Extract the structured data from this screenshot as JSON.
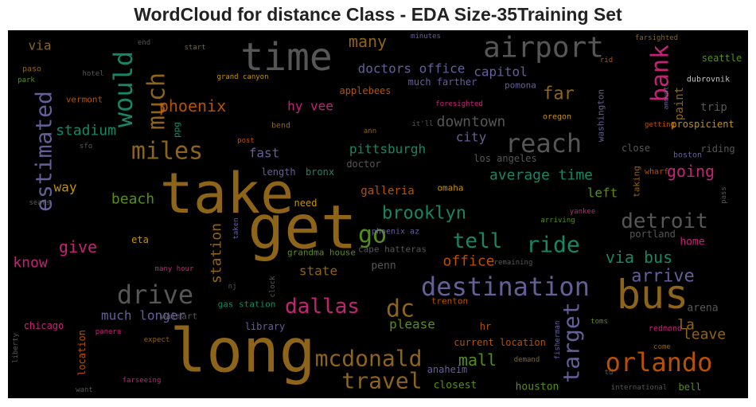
{
  "chart_data": {
    "type": "wordcloud",
    "title": "WordCloud for distance Class - EDA Size-35Training Set",
    "words": [
      {
        "text": "take",
        "color": "#a6761d"
      },
      {
        "text": "get",
        "color": "#a6761d"
      },
      {
        "text": "long",
        "color": "#a6761d"
      },
      {
        "text": "time",
        "color": "#666666"
      },
      {
        "text": "airport",
        "color": "#666666"
      },
      {
        "text": "bus",
        "color": "#a6761d"
      },
      {
        "text": "destination",
        "color": "#7570b3"
      },
      {
        "text": "orlando",
        "color": "#d95f02"
      },
      {
        "text": "reach",
        "color": "#666666"
      },
      {
        "text": "drive",
        "color": "#666666"
      },
      {
        "text": "miles",
        "color": "#a6761d"
      },
      {
        "text": "mcdonald",
        "color": "#a6761d"
      },
      {
        "text": "travel",
        "color": "#a6761d"
      },
      {
        "text": "dallas",
        "color": "#e7298a"
      },
      {
        "text": "dc",
        "color": "#a6761d"
      },
      {
        "text": "detroit",
        "color": "#666666"
      },
      {
        "text": "ride",
        "color": "#1b9e77"
      },
      {
        "text": "tell",
        "color": "#1b9e77"
      },
      {
        "text": "go",
        "color": "#66a61e"
      },
      {
        "text": "brooklyn",
        "color": "#1b9e77"
      },
      {
        "text": "would",
        "color": "#1b9e77"
      },
      {
        "text": "much",
        "color": "#a6761d"
      },
      {
        "text": "estimated",
        "color": "#7570b3"
      },
      {
        "text": "bank",
        "color": "#e7298a"
      },
      {
        "text": "target",
        "color": "#7570b3"
      },
      {
        "text": "via bus",
        "color": "#1b9e77"
      },
      {
        "text": "arrive",
        "color": "#7570b3"
      },
      {
        "text": "going",
        "color": "#e7298a"
      },
      {
        "text": "phoenix",
        "color": "#d95f02"
      },
      {
        "text": "far",
        "color": "#a6761d"
      },
      {
        "text": "many",
        "color": "#a6761d"
      },
      {
        "text": "doctors office",
        "color": "#7570b3"
      },
      {
        "text": "downtown",
        "color": "#666666"
      },
      {
        "text": "city",
        "color": "#7570b3"
      },
      {
        "text": "capitol",
        "color": "#7570b3"
      },
      {
        "text": "pittsburgh",
        "color": "#1b9e77"
      },
      {
        "text": "average time",
        "color": "#1b9e77"
      },
      {
        "text": "left",
        "color": "#66a61e"
      },
      {
        "text": "stadium",
        "color": "#1b9e77"
      },
      {
        "text": "give",
        "color": "#e7298a"
      },
      {
        "text": "know",
        "color": "#e7298a"
      },
      {
        "text": "beach",
        "color": "#66a61e"
      },
      {
        "text": "way",
        "color": "#e6ab02"
      },
      {
        "text": "via",
        "color": "#a6761d"
      },
      {
        "text": "hy vee",
        "color": "#e7298a"
      },
      {
        "text": "fast",
        "color": "#7570b3"
      },
      {
        "text": "station",
        "color": "#a6761d"
      },
      {
        "text": "state",
        "color": "#a6761d"
      },
      {
        "text": "office",
        "color": "#d95f02"
      },
      {
        "text": "mall",
        "color": "#66a61e"
      },
      {
        "text": "please",
        "color": "#66a61e"
      },
      {
        "text": "much longer",
        "color": "#7570b3"
      },
      {
        "text": "la",
        "color": "#a6761d"
      },
      {
        "text": "leave",
        "color": "#a6761d"
      },
      {
        "text": "paint",
        "color": "#a6761d"
      },
      {
        "text": "trip",
        "color": "#666666"
      },
      {
        "text": "seattle",
        "color": "#66a61e"
      },
      {
        "text": "dubrovnik",
        "color": "#e6e6e6"
      },
      {
        "text": "end",
        "color": "#666666"
      },
      {
        "text": "start",
        "color": "#a6761d"
      },
      {
        "text": "minutes",
        "color": "#7570b3"
      },
      {
        "text": "farsighted",
        "color": "#a6761d"
      },
      {
        "text": "rid",
        "color": "#d95f02"
      },
      {
        "text": "paso",
        "color": "#a6761d"
      },
      {
        "text": "park",
        "color": "#66a61e"
      },
      {
        "text": "hotel",
        "color": "#666666"
      },
      {
        "text": "grand canyon",
        "color": "#e6ab02"
      },
      {
        "text": "applebees",
        "color": "#d95f02"
      },
      {
        "text": "much farther",
        "color": "#7570b3"
      },
      {
        "text": "pomona",
        "color": "#7570b3"
      },
      {
        "text": "vermont",
        "color": "#d95f02"
      },
      {
        "text": "ppg",
        "color": "#1b9e77"
      },
      {
        "text": "foresighted",
        "color": "#e7298a"
      },
      {
        "text": "amount",
        "color": "#7570b3"
      },
      {
        "text": "washington",
        "color": "#7570b3"
      },
      {
        "text": "oregon",
        "color": "#e6ab02"
      },
      {
        "text": "bend",
        "color": "#a6761d"
      },
      {
        "text": "ann",
        "color": "#a6761d"
      },
      {
        "text": "it'll",
        "color": "#666666"
      },
      {
        "text": "getting",
        "color": "#d95f02"
      },
      {
        "text": "prospicient",
        "color": "#e6ab02"
      },
      {
        "text": "post",
        "color": "#d95f02"
      },
      {
        "text": "sfo",
        "color": "#666666"
      },
      {
        "text": "close",
        "color": "#666666"
      },
      {
        "text": "riding",
        "color": "#666666"
      },
      {
        "text": "boston",
        "color": "#7570b3"
      },
      {
        "text": "doctor",
        "color": "#666666"
      },
      {
        "text": "los angeles",
        "color": "#666666"
      },
      {
        "text": "wharf",
        "color": "#d95f02"
      },
      {
        "text": "length",
        "color": "#7570b3"
      },
      {
        "text": "bronx",
        "color": "#1b9e77"
      },
      {
        "text": "taking",
        "color": "#a6761d"
      },
      {
        "text": "galleria",
        "color": "#d95f02"
      },
      {
        "text": "omaha",
        "color": "#e6ab02"
      },
      {
        "text": "need",
        "color": "#e6ab02"
      },
      {
        "text": "pass",
        "color": "#666666"
      },
      {
        "text": "sears",
        "color": "#666666"
      },
      {
        "text": "arriving",
        "color": "#66a61e"
      },
      {
        "text": "yankee",
        "color": "#e7298a"
      },
      {
        "text": "taken",
        "color": "#7570b3"
      },
      {
        "text": "phoenix az",
        "color": "#7570b3"
      },
      {
        "text": "portland",
        "color": "#666666"
      },
      {
        "text": "eta",
        "color": "#e6ab02"
      },
      {
        "text": "home",
        "color": "#e7298a"
      },
      {
        "text": "grandma house",
        "color": "#66a61e"
      },
      {
        "text": "cape hatteras",
        "color": "#666666"
      },
      {
        "text": "penn",
        "color": "#666666"
      },
      {
        "text": "remaining",
        "color": "#666666"
      },
      {
        "text": "many hour",
        "color": "#e7298a"
      },
      {
        "text": "nj",
        "color": "#666666"
      },
      {
        "text": "clock",
        "color": "#666666"
      },
      {
        "text": "gas station",
        "color": "#1b9e77"
      },
      {
        "text": "trenton",
        "color": "#d95f02"
      },
      {
        "text": "arena",
        "color": "#666666"
      },
      {
        "text": "walmart",
        "color": "#666666"
      },
      {
        "text": "chicago",
        "color": "#e7298a"
      },
      {
        "text": "library",
        "color": "#7570b3"
      },
      {
        "text": "hr",
        "color": "#d95f02"
      },
      {
        "text": "toms",
        "color": "#66a61e"
      },
      {
        "text": "redmond",
        "color": "#e7298a"
      },
      {
        "text": "panera",
        "color": "#e7298a"
      },
      {
        "text": "fisherman",
        "color": "#7570b3"
      },
      {
        "text": "location",
        "color": "#d95f02"
      },
      {
        "text": "current location",
        "color": "#d95f02"
      },
      {
        "text": "expect",
        "color": "#a6761d"
      },
      {
        "text": "liberty",
        "color": "#666666"
      },
      {
        "text": "come",
        "color": "#a6761d"
      },
      {
        "text": "demand",
        "color": "#a6761d"
      },
      {
        "text": "anaheim",
        "color": "#7570b3"
      },
      {
        "text": "td",
        "color": "#666666"
      },
      {
        "text": "farseeing",
        "color": "#e7298a"
      },
      {
        "text": "closest",
        "color": "#66a61e"
      },
      {
        "text": "houston",
        "color": "#66a61e"
      },
      {
        "text": "bell",
        "color": "#66a61e"
      },
      {
        "text": "international",
        "color": "#666666"
      },
      {
        "text": "want",
        "color": "#666666"
      }
    ]
  }
}
